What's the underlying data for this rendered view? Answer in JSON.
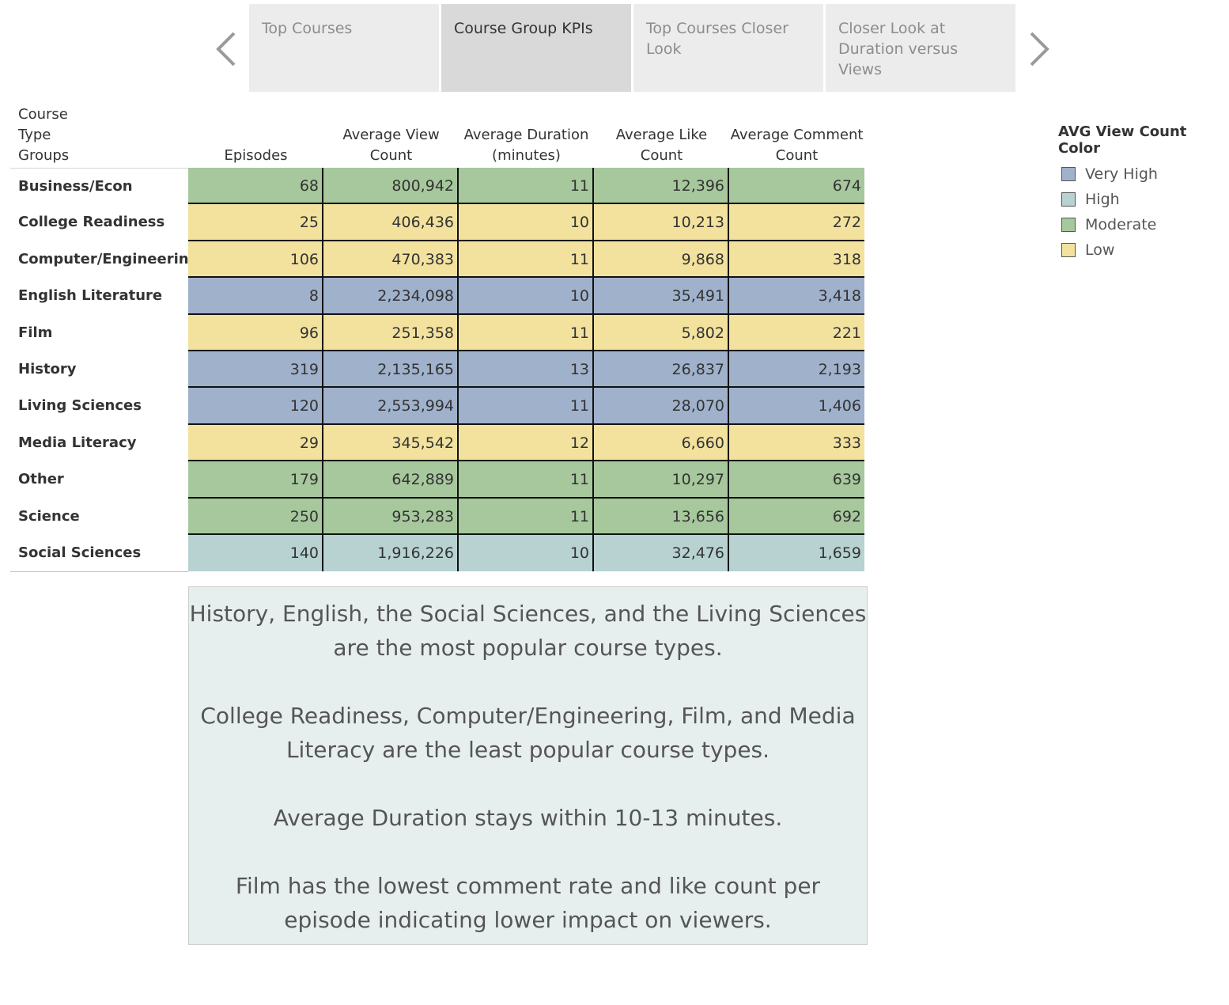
{
  "nav": {
    "tabs": [
      {
        "label": "Top Courses",
        "active": false
      },
      {
        "label": "Course Group KPIs",
        "active": true
      },
      {
        "label": "Top Courses Closer Look",
        "active": false
      },
      {
        "label": "Closer Look at Duration versus Views",
        "active": false
      }
    ],
    "prev_icon": "chevron-left-icon",
    "next_icon": "chevron-right-icon"
  },
  "chart_data": {
    "type": "table",
    "row_header": "Course Type Groups",
    "columns": [
      "Episodes",
      "Average View Count",
      "Average Duration (minutes)",
      "Average Like Count",
      "Average Comment Count"
    ],
    "rows": [
      {
        "group": "Business/Econ",
        "category": "Moderate",
        "values": [
          "68",
          "800,942",
          "11",
          "12,396",
          "674"
        ]
      },
      {
        "group": "College Readiness",
        "category": "Low",
        "values": [
          "25",
          "406,436",
          "10",
          "10,213",
          "272"
        ]
      },
      {
        "group": "Computer/Engineering",
        "category": "Low",
        "values": [
          "106",
          "470,383",
          "11",
          "9,868",
          "318"
        ]
      },
      {
        "group": "English Literature",
        "category": "Very High",
        "values": [
          "8",
          "2,234,098",
          "10",
          "35,491",
          "3,418"
        ]
      },
      {
        "group": "Film",
        "category": "Low",
        "values": [
          "96",
          "251,358",
          "11",
          "5,802",
          "221"
        ]
      },
      {
        "group": "History",
        "category": "Very High",
        "values": [
          "319",
          "2,135,165",
          "13",
          "26,837",
          "2,193"
        ]
      },
      {
        "group": "Living Sciences",
        "category": "Very High",
        "values": [
          "120",
          "2,553,994",
          "11",
          "28,070",
          "1,406"
        ]
      },
      {
        "group": "Media Literacy",
        "category": "Low",
        "values": [
          "29",
          "345,542",
          "12",
          "6,660",
          "333"
        ]
      },
      {
        "group": "Other",
        "category": "Moderate",
        "values": [
          "179",
          "642,889",
          "11",
          "10,297",
          "639"
        ]
      },
      {
        "group": "Science",
        "category": "Moderate",
        "values": [
          "250",
          "953,283",
          "11",
          "13,656",
          "692"
        ]
      },
      {
        "group": "Social Sciences",
        "category": "High",
        "values": [
          "140",
          "1,916,226",
          "10",
          "32,476",
          "1,659"
        ]
      }
    ],
    "legend": {
      "title": "AVG View Count Color",
      "placement": "right",
      "items": [
        {
          "label": "Very High",
          "color": "#a0b1cb"
        },
        {
          "label": "High",
          "color": "#b8d2d2"
        },
        {
          "label": "Moderate",
          "color": "#a6c89c"
        },
        {
          "label": "Low",
          "color": "#f2e29e"
        }
      ]
    }
  },
  "notes": [
    "History, English, the Social Sciences, and the Living Sciences are the most popular course types.",
    "College Readiness, Computer/Engineering, Film, and Media Literacy are the least popular course types.",
    "Average Duration stays within 10-13 minutes.",
    "Film has the lowest comment rate and like count per episode indicating lower impact on viewers."
  ]
}
